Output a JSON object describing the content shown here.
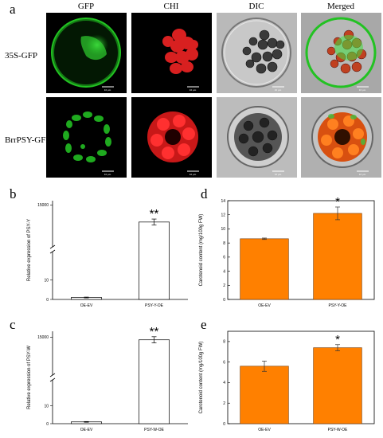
{
  "figure": {
    "panel_a_letter": "a",
    "columns": [
      "GFP",
      "CHI",
      "DIC",
      "Merged"
    ],
    "rows": [
      "35S-GFP",
      "BrrPSY-GFP"
    ],
    "scale_bar_label": "10 μm",
    "colors": {
      "gfp": "#22c222",
      "chi": "#e02020",
      "orange_bar": "#ff8000"
    }
  },
  "chart_data": [
    {
      "panel": "b",
      "type": "bar",
      "style": "open",
      "categories": [
        "OE-EV",
        "PSY-Y-OE"
      ],
      "values": [
        1,
        11000
      ],
      "errors": [
        0.2,
        700
      ],
      "ylabel": "Relative expression of PSY-Y",
      "axis_break": true,
      "ylim_lower": [
        0,
        25
      ],
      "lower_ticks": [
        0,
        10
      ],
      "ylim_upper": [
        5000,
        16000
      ],
      "upper_ticks": [
        15000
      ],
      "significance": [
        "",
        "**"
      ]
    },
    {
      "panel": "c",
      "type": "bar",
      "style": "open",
      "categories": [
        "OE-EV",
        "PSY-W-OE"
      ],
      "values": [
        1,
        14300
      ],
      "errors": [
        0.2,
        800
      ],
      "ylabel": "Relative expression of PSY-W",
      "axis_break": true,
      "ylim_lower": [
        0,
        25
      ],
      "lower_ticks": [
        0,
        10
      ],
      "ylim_upper": [
        5000,
        16500
      ],
      "upper_ticks": [
        15000
      ],
      "significance": [
        "",
        "**"
      ]
    },
    {
      "panel": "d",
      "type": "bar",
      "style": "filled",
      "categories": [
        "OE-EV",
        "PSY-Y-OE"
      ],
      "values": [
        8.6,
        12.2
      ],
      "errors": [
        0.1,
        0.9
      ],
      "ylabel": "Carotenoid content (mg/100g FW)",
      "ylim": [
        0,
        14
      ],
      "yticks": [
        0,
        2,
        4,
        6,
        8,
        10,
        12,
        14
      ],
      "significance": [
        "",
        "*"
      ]
    },
    {
      "panel": "e",
      "type": "bar",
      "style": "filled",
      "categories": [
        "OE-EV",
        "PSY-W-OE"
      ],
      "values": [
        5.6,
        7.4
      ],
      "errors": [
        0.5,
        0.3
      ],
      "ylabel": "Carotenoid content (mg/100g FW)",
      "ylim": [
        0,
        9
      ],
      "yticks": [
        0,
        2,
        4,
        6,
        8
      ],
      "significance": [
        "",
        "*"
      ]
    }
  ]
}
